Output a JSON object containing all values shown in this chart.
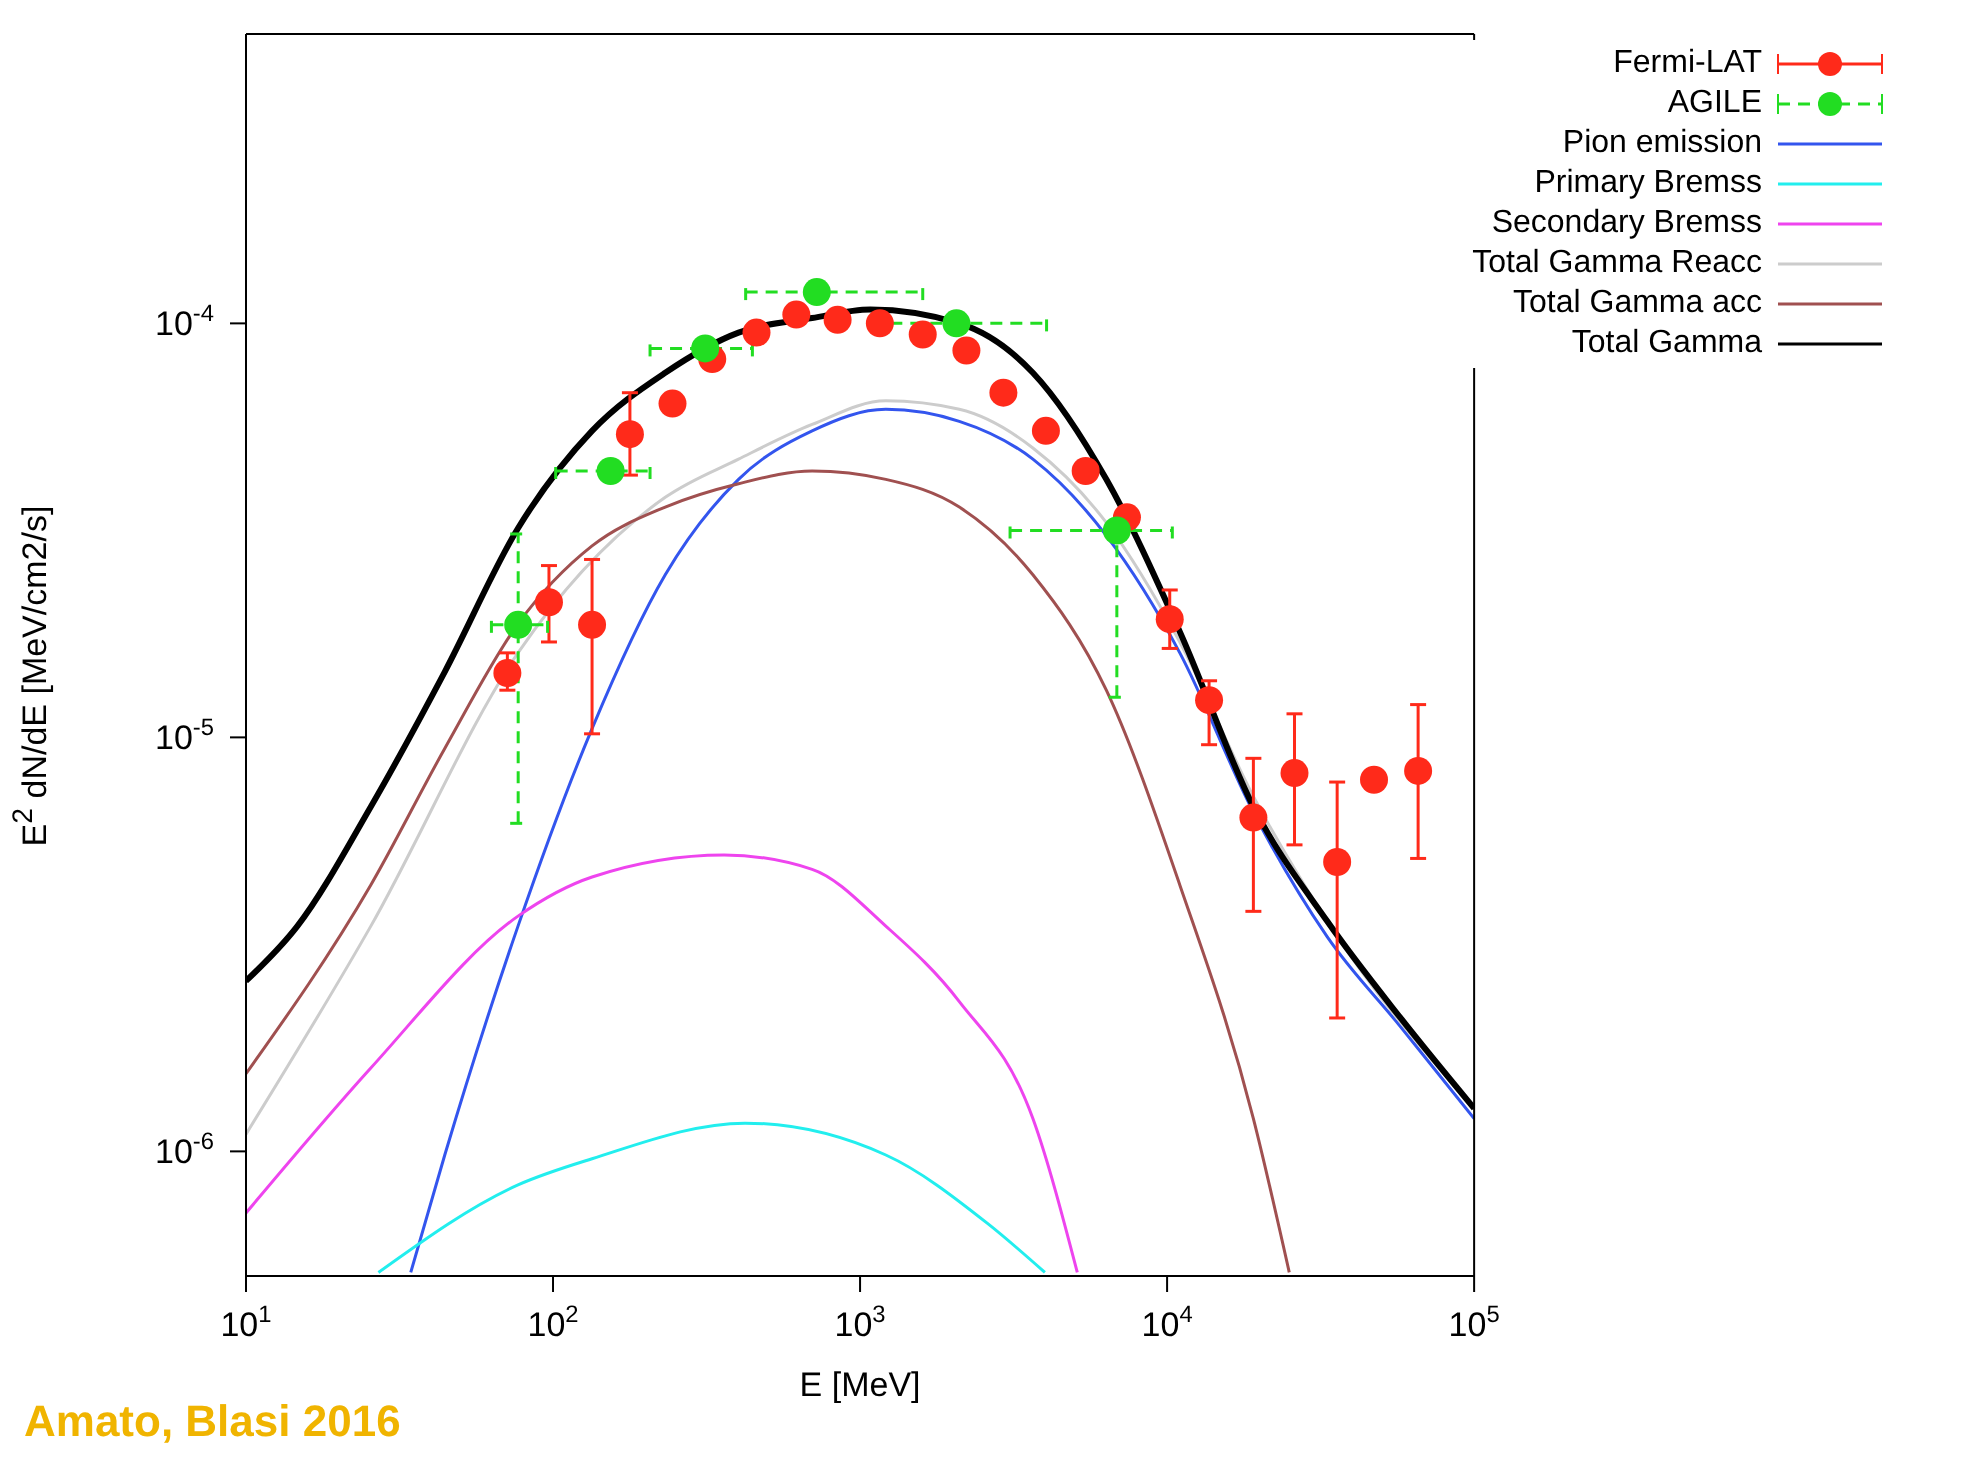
{
  "chart_data": {
    "type": "line",
    "xlabel": "E [MeV]",
    "ylabel": "E$^{2}$ dN/dE [MeV/cm2/s]",
    "log": "xy",
    "grid": false,
    "legend": "top right",
    "xlim": [
      10,
      100000
    ],
    "xticks": [
      {
        "value": 10,
        "label": "10$^{1}$"
      },
      {
        "value": 100,
        "label": "10$^{2}$"
      },
      {
        "value": 1000,
        "label": "10$^{3}$"
      },
      {
        "value": 10000,
        "label": "10$^{4}$"
      },
      {
        "value": 100000,
        "label": "10$^{5}$"
      }
    ],
    "ylim": [
      5e-07,
      0.0005
    ],
    "yticks": [
      {
        "value": 1e-06,
        "label": "10$^{-6}$"
      },
      {
        "value": 1e-05,
        "label": "10$^{-5}$"
      },
      {
        "value": 0.0001,
        "label": "10$^{-4}$"
      }
    ],
    "annotations": [
      "Amato, Blasi 2016"
    ],
    "series": [
      {
        "name": "Fermi-LAT",
        "type": "scatter",
        "marker": "circle",
        "color": "#ff2a1a",
        "x": [
          71,
          97,
          134,
          178,
          245,
          330,
          460,
          620,
          845,
          1160,
          1600,
          2220,
          2930,
          4030,
          5430,
          7400,
          10200,
          13700,
          19100,
          26000,
          35800,
          47200,
          65700
        ],
        "values": [
          1.43e-05,
          2.12e-05,
          1.87e-05,
          5.4e-05,
          6.4e-05,
          8.2e-05,
          9.5e-05,
          0.000105,
          0.000102,
          0.0001,
          9.4e-05,
          8.6e-05,
          6.8e-05,
          5.5e-05,
          4.4e-05,
          3.4e-05,
          1.93e-05,
          1.23e-05,
          6.4e-06,
          8.2e-06,
          5e-06,
          7.9e-06,
          8.3e-06
        ],
        "errors": [
          [
            1.3e-05,
            1.6e-05
          ],
          [
            1.7e-05,
            2.6e-05
          ],
          [
            1.02e-05,
            2.69e-05
          ],
          [
            4.3e-05,
            6.8e-05
          ],
          null,
          null,
          null,
          null,
          null,
          null,
          null,
          null,
          null,
          null,
          null,
          null,
          [
            1.64e-05,
            2.27e-05
          ],
          [
            9.6e-06,
            1.37e-05
          ],
          [
            3.8e-06,
            8.9e-06
          ],
          [
            5.5e-06,
            1.14e-05
          ],
          [
            2.1e-06,
            7.8e-06
          ],
          null,
          [
            5.1e-06,
            1.2e-05
          ]
        ]
      },
      {
        "name": "AGILE",
        "type": "scatter",
        "marker": "circle",
        "line_style": "dashed",
        "color": "#22dd22",
        "x": [
          77,
          154,
          313,
          723,
          2060,
          6860
        ],
        "values": [
          1.87e-05,
          4.4e-05,
          8.7e-05,
          0.000119,
          0.0001,
          3.16e-05
        ],
        "errors": [
          [
            6.2e-06,
            3.1e-05
          ],
          null,
          null,
          null,
          null,
          [
            1.25e-05,
            3.2e-05
          ]
        ],
        "xerrors": [
          [
            63,
            96
          ],
          [
            102,
            207
          ],
          [
            207,
            446
          ],
          [
            424,
            1600
          ],
          [
            1080,
            4050
          ],
          [
            3080,
            10400
          ]
        ]
      },
      {
        "name": "Pion emission",
        "color": "#3355ee",
        "x": [
          34.4,
          44.4,
          76.9,
          134,
          232,
          402,
          698,
          1213,
          2105,
          3655,
          6340,
          11000,
          19100,
          33200,
          57600,
          100000
        ],
        "values": [
          5.1e-07,
          9.8e-07,
          3.5e-06,
          1.05e-05,
          2.47e-05,
          4.2e-05,
          5.5e-05,
          6.2e-05,
          5.8e-05,
          4.7e-05,
          3.07e-05,
          1.6e-05,
          6.6e-06,
          3.3e-06,
          2e-06,
          1.2e-06
        ]
      },
      {
        "name": "Primary Bremss",
        "color": "#22eeee",
        "x": [
          27,
          76.9,
          134,
          422,
          1213,
          2600,
          4000
        ],
        "values": [
          5.1e-07,
          8.3e-07,
          9.6e-07,
          1.17e-06,
          9.8e-07,
          6.7e-07,
          5.1e-07
        ]
      },
      {
        "name": "Secondary Bremss",
        "color": "#ee44ee",
        "x": [
          10,
          25.5,
          76.9,
          134,
          361,
          698,
          1213,
          2105,
          3655,
          5100
        ],
        "values": [
          7.1e-07,
          1.59e-06,
          3.7e-06,
          4.6e-06,
          5.2e-06,
          4.8e-06,
          3.5e-06,
          2.3e-06,
          1.2e-06,
          5.1e-07
        ]
      },
      {
        "name": "Total Gamma Reacc",
        "color": "#cccccc",
        "x": [
          10,
          25.5,
          76.9,
          232,
          402,
          698,
          1213,
          2105,
          3655,
          6340,
          11000,
          19100,
          33200,
          100000
        ],
        "values": [
          1.1e-06,
          3.5e-06,
          1.6e-05,
          3.8e-05,
          4.7e-05,
          5.7e-05,
          6.5e-05,
          6.2e-05,
          5e-05,
          3.3e-05,
          1.7e-05,
          7.2e-06,
          3.6e-06,
          1.27e-06
        ]
      },
      {
        "name": "Total Gamma acc",
        "color": "#a05050",
        "x": [
          10,
          25.5,
          44.4,
          76.9,
          134,
          232,
          402,
          698,
          1213,
          2105,
          3655,
          6340,
          11000,
          19100,
          25000
        ],
        "values": [
          1.54e-06,
          4.4e-06,
          9.4e-06,
          1.88e-05,
          2.9e-05,
          3.6e-05,
          4.1e-05,
          4.4e-05,
          4.2e-05,
          3.6e-05,
          2.47e-05,
          1.3e-05,
          4.4e-06,
          1.2e-06,
          5.1e-07
        ]
      },
      {
        "name": "Total Gamma",
        "color": "#000000",
        "x": [
          10,
          14.7,
          25.5,
          44.4,
          76.9,
          134,
          232,
          402,
          698,
          1080,
          2105,
          3655,
          6340,
          11000,
          19100,
          33200,
          57600,
          100000
        ],
        "values": [
          2.58e-06,
          3.5e-06,
          6.8e-06,
          1.44e-05,
          3.2e-05,
          5.5e-05,
          7.6e-05,
          9.5e-05,
          0.000103,
          0.000108,
          0.0001,
          7.6e-05,
          4.2e-05,
          1.8e-05,
          6.8e-06,
          3.6e-06,
          2.1e-06,
          1.27e-06
        ]
      }
    ]
  }
}
